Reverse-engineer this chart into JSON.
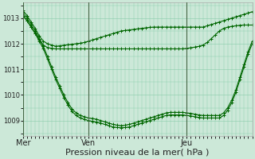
{
  "bg_color": "#cce8d8",
  "grid_color": "#88ccaa",
  "line_color": "#006600",
  "xlabel": "Pression niveau de la mer( hPa )",
  "xlabel_fontsize": 8,
  "ylim": [
    1008.4,
    1013.6
  ],
  "yticks": [
    1009,
    1010,
    1011,
    1012,
    1013
  ],
  "xtick_labels": [
    "Mer",
    "Ven",
    "Jeu"
  ],
  "xtick_positions": [
    0,
    16,
    40
  ],
  "total_points": 57,
  "series": [
    [
      1013.3,
      1013.1,
      1012.85,
      1012.6,
      1012.3,
      1012.1,
      1012.0,
      1011.95,
      1011.9,
      1011.92,
      1011.94,
      1011.96,
      1011.98,
      1012.0,
      1012.02,
      1012.05,
      1012.1,
      1012.15,
      1012.2,
      1012.25,
      1012.3,
      1012.35,
      1012.4,
      1012.45,
      1012.5,
      1012.52,
      1012.54,
      1012.56,
      1012.58,
      1012.6,
      1012.62,
      1012.64,
      1012.65,
      1012.65,
      1012.65,
      1012.65,
      1012.65,
      1012.65,
      1012.65,
      1012.65,
      1012.65,
      1012.65,
      1012.65,
      1012.65,
      1012.65,
      1012.7,
      1012.75,
      1012.8,
      1012.85,
      1012.9,
      1012.95,
      1013.0,
      1013.05,
      1013.1,
      1013.15,
      1013.2,
      1013.25
    ],
    [
      1013.1,
      1012.9,
      1012.65,
      1012.4,
      1012.15,
      1011.95,
      1011.85,
      1011.82,
      1011.8,
      1011.8,
      1011.8,
      1011.8,
      1011.8,
      1011.8,
      1011.8,
      1011.8,
      1011.8,
      1011.8,
      1011.8,
      1011.8,
      1011.8,
      1011.8,
      1011.8,
      1011.8,
      1011.8,
      1011.8,
      1011.8,
      1011.8,
      1011.8,
      1011.8,
      1011.8,
      1011.8,
      1011.8,
      1011.8,
      1011.8,
      1011.8,
      1011.8,
      1011.8,
      1011.8,
      1011.8,
      1011.82,
      1011.84,
      1011.87,
      1011.9,
      1011.95,
      1012.05,
      1012.2,
      1012.35,
      1012.5,
      1012.6,
      1012.65,
      1012.68,
      1012.7,
      1012.72,
      1012.73,
      1012.73,
      1012.73
    ],
    [
      1013.2,
      1013.0,
      1012.75,
      1012.5,
      1012.2,
      1011.9,
      1011.5,
      1011.1,
      1010.7,
      1010.35,
      1010.0,
      1009.7,
      1009.45,
      1009.3,
      1009.2,
      1009.15,
      1009.1,
      1009.08,
      1009.05,
      1009.0,
      1008.95,
      1008.9,
      1008.85,
      1008.82,
      1008.8,
      1008.82,
      1008.85,
      1008.9,
      1008.95,
      1009.0,
      1009.05,
      1009.1,
      1009.15,
      1009.2,
      1009.25,
      1009.3,
      1009.32,
      1009.32,
      1009.32,
      1009.32,
      1009.3,
      1009.28,
      1009.25,
      1009.22,
      1009.2,
      1009.2,
      1009.2,
      1009.2,
      1009.2,
      1009.3,
      1009.5,
      1009.8,
      1010.2,
      1010.7,
      1011.2,
      1011.7,
      1012.1
    ],
    [
      1013.1,
      1012.9,
      1012.65,
      1012.4,
      1012.1,
      1011.8,
      1011.4,
      1011.0,
      1010.6,
      1010.25,
      1009.9,
      1009.6,
      1009.35,
      1009.2,
      1009.1,
      1009.05,
      1009.0,
      1008.97,
      1008.94,
      1008.9,
      1008.85,
      1008.8,
      1008.75,
      1008.73,
      1008.72,
      1008.73,
      1008.75,
      1008.8,
      1008.85,
      1008.9,
      1008.95,
      1009.0,
      1009.05,
      1009.1,
      1009.15,
      1009.2,
      1009.22,
      1009.22,
      1009.22,
      1009.22,
      1009.2,
      1009.18,
      1009.15,
      1009.12,
      1009.1,
      1009.1,
      1009.1,
      1009.1,
      1009.1,
      1009.2,
      1009.4,
      1009.7,
      1010.1,
      1010.6,
      1011.1,
      1011.6,
      1012.0
    ]
  ]
}
